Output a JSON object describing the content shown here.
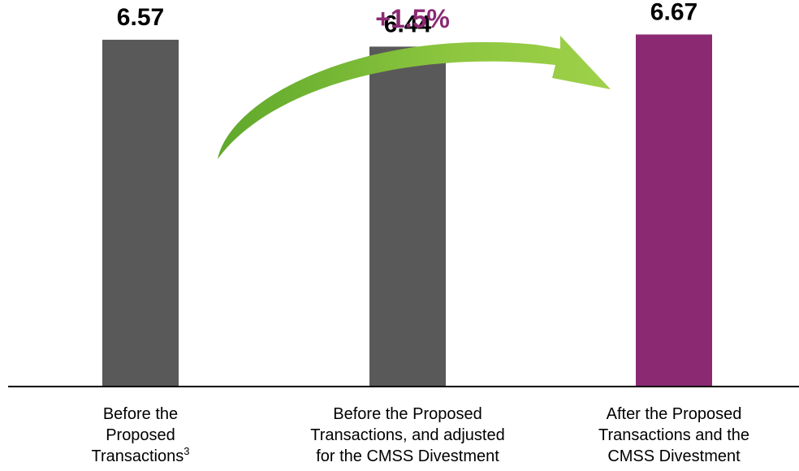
{
  "chart_data": {
    "type": "bar",
    "categories": [
      [
        "Before the",
        "Proposed",
        "Transactions"
      ],
      [
        "Before the Proposed",
        "Transactions, and adjusted",
        "for the CMSS Divestment"
      ],
      [
        "After the Proposed",
        "Transactions and the",
        "CMSS Divestment"
      ]
    ],
    "category_footnotes": [
      "3",
      "",
      ""
    ],
    "values": [
      6.57,
      6.44,
      6.67
    ],
    "value_labels": [
      "6.57",
      "6.44",
      "6.67"
    ],
    "bar_colors": [
      "#595959",
      "#595959",
      "#8B2A73"
    ],
    "ylim": [
      0,
      7.2
    ],
    "grid": false,
    "title": "",
    "xlabel": "",
    "ylabel": "",
    "annotation": {
      "text": "+1.5%",
      "color": "#8B2A73",
      "arrow_color": "#8DC63F",
      "from_category": 0,
      "to_category": 2
    }
  }
}
